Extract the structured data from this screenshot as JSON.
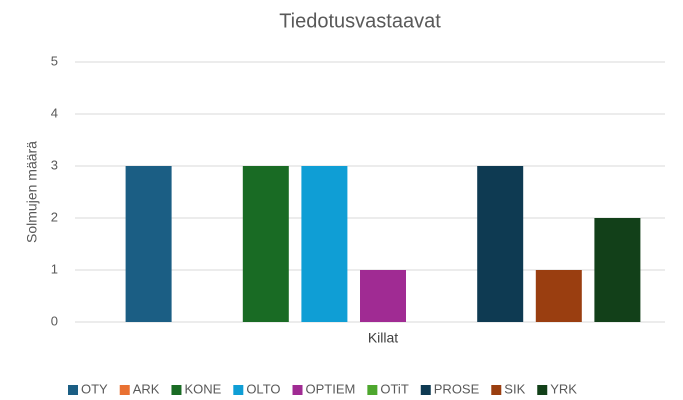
{
  "chart_data": {
    "type": "bar",
    "title": "Tiedotusvastaavat",
    "y_label": "Solmujen määrä",
    "categories": [
      "Killat"
    ],
    "series": [
      {
        "name": "OTY",
        "color": "#1b5e84",
        "values": [
          3
        ]
      },
      {
        "name": "ARK",
        "color": "#e97132",
        "values": [
          0
        ]
      },
      {
        "name": "KONE",
        "color": "#196b24",
        "values": [
          3
        ]
      },
      {
        "name": "OLTO",
        "color": "#0f9ed5",
        "values": [
          3
        ]
      },
      {
        "name": "OPTIEM",
        "color": "#a02b93",
        "values": [
          1
        ]
      },
      {
        "name": "OTiT",
        "color": "#4ea72e",
        "values": [
          0
        ]
      },
      {
        "name": "PROSE",
        "color": "#0e3a52",
        "values": [
          3
        ]
      },
      {
        "name": "SIK",
        "color": "#9a3e10",
        "values": [
          1
        ]
      },
      {
        "name": "YRK",
        "color": "#124019",
        "values": [
          2
        ]
      }
    ],
    "ylim": [
      0,
      5
    ],
    "yticks": [
      0,
      1,
      2,
      3,
      4,
      5
    ],
    "grid": true,
    "legend": "bottom"
  }
}
